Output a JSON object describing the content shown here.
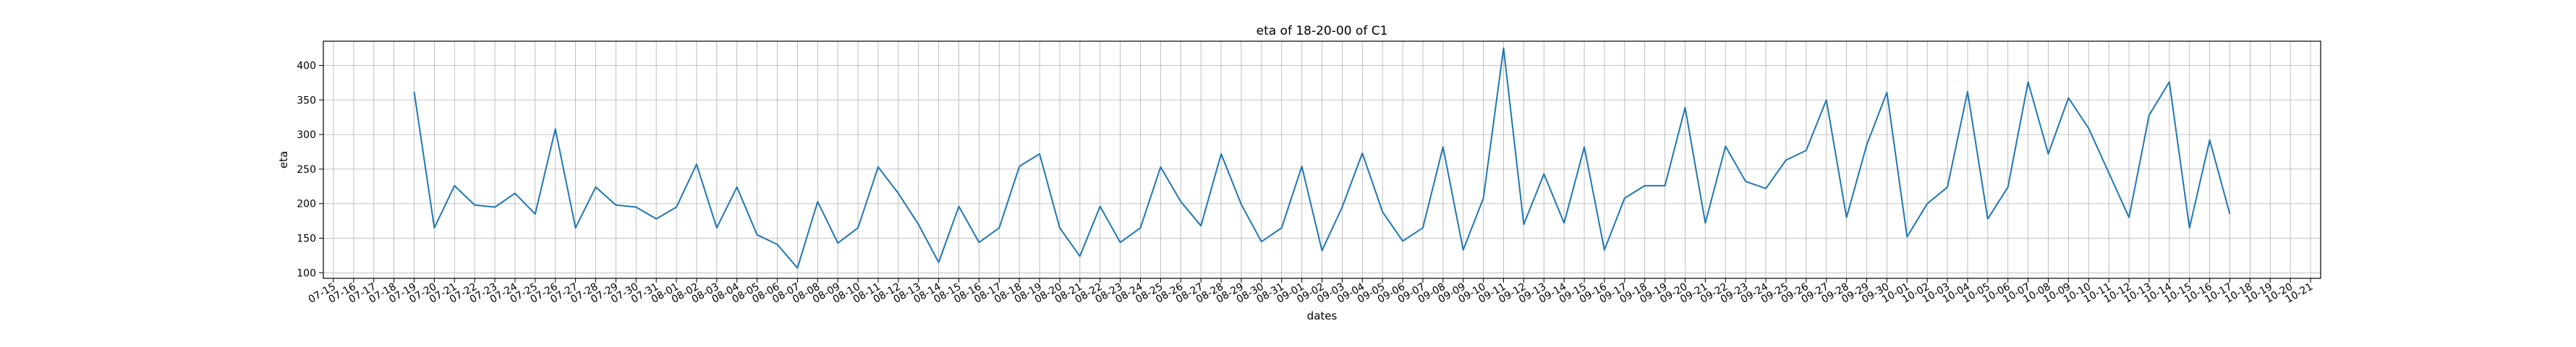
{
  "chart_data": {
    "type": "line",
    "title": "eta of 18-20-00 of C1",
    "xlabel": "dates",
    "ylabel": "eta",
    "grid": true,
    "line_color": "#1f77b4",
    "yticks": [
      100,
      150,
      200,
      250,
      300,
      350,
      400
    ],
    "ylim": [
      92,
      435
    ],
    "x_tick_labels": [
      "07-15",
      "07-16",
      "07-17",
      "07-18",
      "07-19",
      "07-20",
      "07-21",
      "07-22",
      "07-23",
      "07-24",
      "07-25",
      "07-26",
      "07-27",
      "07-28",
      "07-29",
      "07-30",
      "07-31",
      "08-01",
      "08-02",
      "08-03",
      "08-04",
      "08-05",
      "08-06",
      "08-07",
      "08-08",
      "08-09",
      "08-10",
      "08-11",
      "08-12",
      "08-13",
      "08-14",
      "08-15",
      "08-16",
      "08-17",
      "08-18",
      "08-19",
      "08-20",
      "08-21",
      "08-22",
      "08-23",
      "08-24",
      "08-25",
      "08-26",
      "08-27",
      "08-28",
      "08-29",
      "08-30",
      "08-31",
      "09-01",
      "09-02",
      "09-03",
      "09-04",
      "09-05",
      "09-06",
      "09-07",
      "09-08",
      "09-09",
      "09-10",
      "09-11",
      "09-12",
      "09-13",
      "09-14",
      "09-15",
      "09-16",
      "09-17",
      "09-18",
      "09-19",
      "09-20",
      "09-21",
      "09-22",
      "09-23",
      "09-24",
      "09-25",
      "09-26",
      "09-27",
      "09-28",
      "09-29",
      "09-30",
      "10-01",
      "10-02",
      "10-03",
      "10-04",
      "10-05",
      "10-06",
      "10-07",
      "10-08",
      "10-09",
      "10-10",
      "10-11",
      "10-12",
      "10-13",
      "10-14",
      "10-15",
      "10-16",
      "10-17",
      "10-18",
      "10-19",
      "10-20",
      "10-21"
    ],
    "series": [
      {
        "x": [
          "07-19",
          "07-20",
          "07-21",
          "07-22",
          "07-23",
          "07-24",
          "07-25",
          "07-26",
          "07-27",
          "07-28",
          "07-29",
          "07-30",
          "07-31",
          "08-01",
          "08-02",
          "08-03",
          "08-04",
          "08-05",
          "08-06",
          "08-07",
          "08-08",
          "08-09",
          "08-10",
          "08-11",
          "08-12",
          "08-13",
          "08-14",
          "08-15",
          "08-16",
          "08-17",
          "08-18",
          "08-19",
          "08-20",
          "08-21",
          "08-22",
          "08-23",
          "08-24",
          "08-25",
          "08-26",
          "08-27",
          "08-28",
          "08-29",
          "08-30",
          "08-31",
          "09-01",
          "09-02",
          "09-03",
          "09-04",
          "09-05",
          "09-06",
          "09-07",
          "09-08",
          "09-09",
          "09-10",
          "09-11",
          "09-12",
          "09-13",
          "09-14",
          "09-15",
          "09-16",
          "09-17",
          "09-18",
          "09-19",
          "09-20",
          "09-21",
          "09-22",
          "09-23",
          "09-24",
          "09-25",
          "09-26",
          "09-27",
          "09-28",
          "09-29",
          "09-30",
          "10-01",
          "10-02",
          "10-03",
          "10-04",
          "10-05",
          "10-06",
          "10-07",
          "10-08",
          "10-09",
          "10-10",
          "10-12",
          "10-13",
          "10-14",
          "10-15",
          "10-16",
          "10-17"
        ],
        "values": [
          362,
          165,
          226,
          198,
          195,
          215,
          185,
          308,
          165,
          224,
          198,
          195,
          178,
          195,
          257,
          165,
          224,
          155,
          141,
          107,
          203,
          143,
          165,
          253,
          215,
          170,
          115,
          196,
          144,
          165,
          254,
          272,
          165,
          124,
          196,
          144,
          165,
          253,
          203,
          168,
          272,
          199,
          145,
          165,
          254,
          132,
          195,
          273,
          188,
          146,
          165,
          282,
          133,
          208,
          425,
          170,
          243,
          172,
          282,
          133,
          208,
          226,
          226,
          339,
          172,
          283,
          232,
          222,
          263,
          277,
          350,
          180,
          285,
          361,
          152,
          200,
          224,
          362,
          178,
          224,
          376,
          272,
          353,
          309,
          180,
          328,
          376,
          165,
          292,
          185
        ]
      }
    ]
  }
}
